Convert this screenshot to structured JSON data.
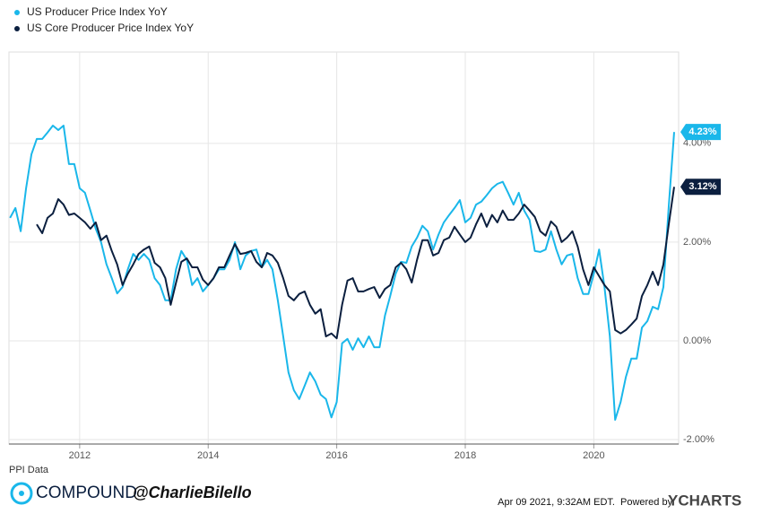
{
  "chart_data": {
    "type": "line",
    "x": [
      2010.917,
      2011.0,
      2011.083,
      2011.167,
      2011.25,
      2011.333,
      2011.417,
      2011.5,
      2011.583,
      2011.667,
      2011.75,
      2011.833,
      2011.917,
      2012.0,
      2012.083,
      2012.167,
      2012.25,
      2012.333,
      2012.417,
      2012.5,
      2012.583,
      2012.667,
      2012.75,
      2012.833,
      2012.917,
      2013.0,
      2013.083,
      2013.167,
      2013.25,
      2013.333,
      2013.417,
      2013.5,
      2013.583,
      2013.667,
      2013.75,
      2013.833,
      2013.917,
      2014.0,
      2014.083,
      2014.167,
      2014.25,
      2014.333,
      2014.417,
      2014.5,
      2014.583,
      2014.667,
      2014.75,
      2014.833,
      2014.917,
      2015.0,
      2015.083,
      2015.167,
      2015.25,
      2015.333,
      2015.417,
      2015.5,
      2015.583,
      2015.667,
      2015.75,
      2015.833,
      2015.917,
      2016.0,
      2016.083,
      2016.167,
      2016.25,
      2016.333,
      2016.417,
      2016.5,
      2016.583,
      2016.667,
      2016.75,
      2016.833,
      2016.917,
      2017.0,
      2017.083,
      2017.167,
      2017.25,
      2017.333,
      2017.417,
      2017.5,
      2017.583,
      2017.667,
      2017.75,
      2017.833,
      2017.917,
      2018.0,
      2018.083,
      2018.167,
      2018.25,
      2018.333,
      2018.417,
      2018.5,
      2018.583,
      2018.667,
      2018.75,
      2018.833,
      2018.917,
      2019.0,
      2019.083,
      2019.167,
      2019.25,
      2019.333,
      2019.417,
      2019.5,
      2019.583,
      2019.667,
      2019.75,
      2019.833,
      2019.917,
      2020.0,
      2020.083,
      2020.167,
      2020.25,
      2020.333,
      2020.417,
      2020.5,
      2020.583,
      2020.667,
      2020.75,
      2020.833,
      2020.917,
      2021.0,
      2021.083,
      2021.167,
      2021.25
    ],
    "series": [
      {
        "name": "US Producer Price Index YoY",
        "color": "#1ab7ea",
        "values": [
          2.49,
          2.69,
          2.22,
          3.09,
          3.78,
          4.09,
          4.09,
          4.22,
          4.36,
          4.27,
          4.36,
          3.58,
          3.58,
          3.09,
          3.0,
          2.64,
          2.27,
          2.0,
          1.55,
          1.27,
          0.96,
          1.09,
          1.45,
          1.76,
          1.64,
          1.76,
          1.64,
          1.27,
          1.13,
          0.82,
          0.82,
          1.45,
          1.82,
          1.64,
          1.13,
          1.27,
          1.0,
          1.13,
          1.27,
          1.45,
          1.45,
          1.64,
          2.0,
          1.45,
          1.73,
          1.82,
          1.85,
          1.49,
          1.64,
          1.45,
          0.82,
          0.09,
          -0.64,
          -1.0,
          -1.18,
          -0.91,
          -0.64,
          -0.82,
          -1.09,
          -1.18,
          -1.55,
          -1.24,
          -0.05,
          0.04,
          -0.18,
          0.05,
          -0.13,
          0.09,
          -0.13,
          -0.13,
          0.51,
          0.91,
          1.36,
          1.6,
          1.58,
          1.91,
          2.09,
          2.33,
          2.22,
          1.85,
          2.15,
          2.4,
          2.55,
          2.69,
          2.85,
          2.4,
          2.49,
          2.76,
          2.82,
          2.95,
          3.09,
          3.18,
          3.22,
          3.0,
          2.76,
          3.0,
          2.64,
          2.45,
          1.82,
          1.8,
          1.85,
          2.22,
          1.85,
          1.55,
          1.73,
          1.76,
          1.27,
          0.95,
          0.95,
          1.36,
          1.85,
          1.09,
          0.09,
          -1.6,
          -1.24,
          -0.73,
          -0.36,
          -0.36,
          0.27,
          0.4,
          0.69,
          0.64,
          1.09,
          2.73,
          4.23
        ],
        "value_labels": [
          null,
          null,
          null,
          null,
          null,
          null,
          null,
          null,
          null,
          null,
          null,
          null,
          null,
          null,
          null,
          null,
          null,
          null,
          null,
          null,
          null,
          null,
          null,
          null,
          null,
          null,
          null,
          null,
          null,
          null,
          null,
          null,
          null,
          null,
          null,
          null,
          null,
          null,
          null,
          null,
          null,
          null,
          null,
          null,
          null,
          null,
          null,
          null,
          null,
          null,
          null,
          null,
          null,
          null,
          null,
          null,
          null,
          null,
          null,
          null,
          null,
          null,
          null,
          null,
          null,
          null,
          null,
          null,
          null,
          null,
          null,
          null,
          null,
          null,
          null,
          null,
          null,
          null,
          null,
          null,
          null,
          null,
          null,
          null,
          null,
          null,
          null,
          null,
          null,
          null,
          null,
          null,
          null,
          null,
          null,
          null,
          null,
          null,
          null,
          null,
          null,
          null,
          null,
          null,
          null,
          null,
          null,
          null,
          null,
          null,
          null,
          null,
          null,
          null,
          null,
          null,
          null,
          null,
          null,
          null,
          null,
          null,
          null,
          null,
          "4.23%"
        ]
      },
      {
        "name": "US Core Producer Price Index YoY",
        "color": "#0b1f3f",
        "values": [
          null,
          null,
          null,
          null,
          null,
          2.36,
          2.18,
          2.49,
          2.58,
          2.87,
          2.76,
          2.55,
          2.58,
          2.49,
          2.4,
          2.27,
          2.4,
          2.04,
          2.13,
          1.82,
          1.55,
          1.13,
          1.36,
          1.55,
          1.76,
          1.85,
          1.91,
          1.58,
          1.49,
          1.27,
          0.73,
          1.18,
          1.6,
          1.67,
          1.49,
          1.49,
          1.24,
          1.13,
          1.27,
          1.49,
          1.49,
          1.73,
          1.96,
          1.76,
          1.78,
          1.82,
          1.6,
          1.49,
          1.78,
          1.73,
          1.58,
          1.27,
          0.91,
          0.82,
          0.95,
          1.0,
          0.73,
          0.55,
          0.64,
          0.09,
          0.15,
          0.05,
          0.73,
          1.22,
          1.27,
          1.0,
          1.0,
          1.05,
          1.09,
          0.87,
          1.05,
          1.13,
          1.49,
          1.58,
          1.45,
          1.18,
          1.64,
          2.04,
          2.04,
          1.73,
          1.78,
          2.04,
          2.09,
          2.31,
          2.15,
          2.0,
          2.09,
          2.36,
          2.58,
          2.31,
          2.55,
          2.4,
          2.64,
          2.45,
          2.45,
          2.58,
          2.76,
          2.64,
          2.51,
          2.22,
          2.13,
          2.42,
          2.31,
          2.0,
          2.09,
          2.22,
          1.91,
          1.45,
          1.13,
          1.49,
          1.31,
          1.13,
          1.0,
          0.22,
          0.15,
          0.22,
          0.33,
          0.45,
          0.91,
          1.13,
          1.4,
          1.13,
          1.55,
          2.36,
          3.12
        ],
        "value_labels": [
          null,
          null,
          null,
          null,
          null,
          null,
          null,
          null,
          null,
          null,
          null,
          null,
          null,
          null,
          null,
          null,
          null,
          null,
          null,
          null,
          null,
          null,
          null,
          null,
          null,
          null,
          null,
          null,
          null,
          null,
          null,
          null,
          null,
          null,
          null,
          null,
          null,
          null,
          null,
          null,
          null,
          null,
          null,
          null,
          null,
          null,
          null,
          null,
          null,
          null,
          null,
          null,
          null,
          null,
          null,
          null,
          null,
          null,
          null,
          null,
          null,
          null,
          null,
          null,
          null,
          null,
          null,
          null,
          null,
          null,
          null,
          null,
          null,
          null,
          null,
          null,
          null,
          null,
          null,
          null,
          null,
          null,
          null,
          null,
          null,
          null,
          null,
          null,
          null,
          null,
          null,
          null,
          null,
          null,
          null,
          null,
          null,
          null,
          null,
          null,
          null,
          null,
          null,
          null,
          null,
          null,
          null,
          null,
          null,
          null,
          null,
          null,
          null,
          null,
          null,
          null,
          null,
          null,
          null,
          null,
          null,
          null,
          null,
          null,
          "3.12%"
        ]
      }
    ],
    "xlim": [
      2010.9,
      2021.32
    ],
    "xticks": [
      2012,
      2014,
      2016,
      2018,
      2020
    ],
    "ylim": [
      -2.09,
      5.85
    ],
    "yticks": [
      {
        "value": -2,
        "label": "-2.00%"
      },
      {
        "value": 0,
        "label": "0.00%"
      },
      {
        "value": 2,
        "label": "2.00%"
      },
      {
        "value": 4,
        "label": "4.00%"
      }
    ],
    "grid": true,
    "legend": "top-left",
    "source": "PPI Data",
    "brand": "COMPOUND",
    "handle": "@CharlieBilello",
    "timestamp": "Apr 09 2021, 9:32AM EDT.",
    "powered_by": "Powered by",
    "provider": "YCHARTS"
  }
}
